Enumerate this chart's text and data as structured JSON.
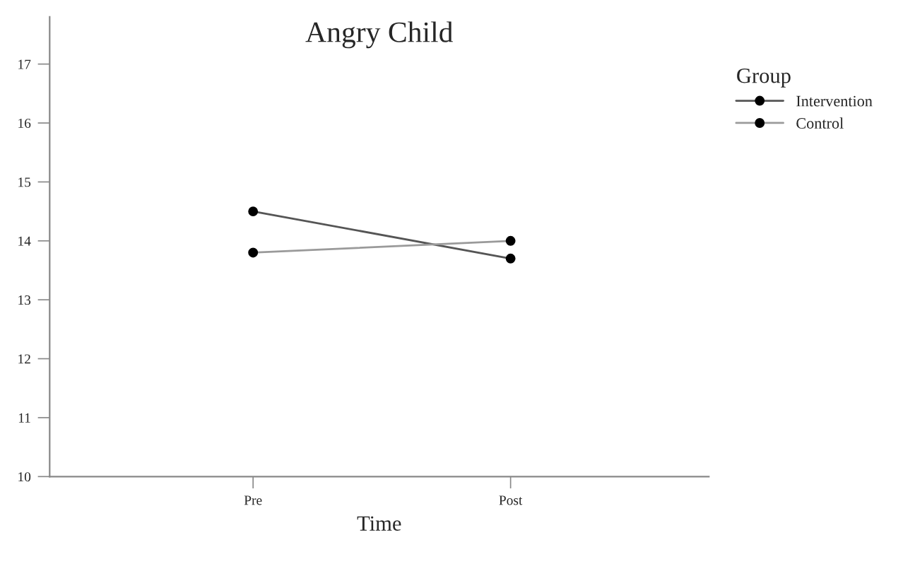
{
  "chart_data": {
    "type": "line",
    "title": "Angry Child",
    "xlabel": "Time",
    "legend_title": "Group",
    "legend": "right",
    "marker": "circle",
    "line_style": "solid",
    "grid": false,
    "categories": [
      "Pre",
      "Post"
    ],
    "series": [
      {
        "name": "Intervention",
        "color": "#555555",
        "values": [
          14.5,
          13.7
        ]
      },
      {
        "name": "Control",
        "color": "#9a9a9a",
        "values": [
          13.8,
          14.0
        ]
      }
    ],
    "ylim": [
      10,
      17.8
    ],
    "yticks": [
      10,
      11,
      12,
      13,
      14,
      15,
      16,
      17
    ]
  }
}
